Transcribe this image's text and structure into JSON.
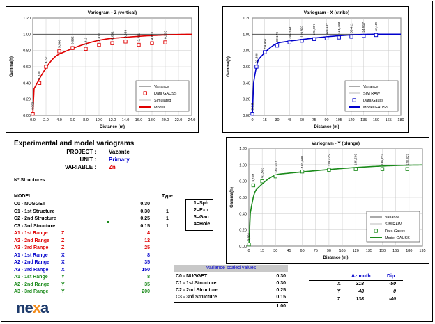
{
  "page": {
    "title": "Experimental and model variograms"
  },
  "project_info": {
    "project_label": "PROJECT :",
    "project_value": "Vazante",
    "unit_label": "UNIT :",
    "unit_value": "Primary",
    "variable_label": "VARIABLE :",
    "variable_value": "Zn"
  },
  "structures_label": "Nº Structures",
  "model": {
    "header": "MODEL",
    "type_header": "Type",
    "rows": [
      {
        "label": "C0 - NUGGET",
        "value": "0.30",
        "type": ""
      },
      {
        "label": "C1 - 1st Structure",
        "value": "0.30",
        "type": "1"
      },
      {
        "label": "C2 - 2nd Structure",
        "value": "0.25",
        "type": "1"
      },
      {
        "label": "C3 - 3rd Structure",
        "value": "0.15",
        "type": "1"
      }
    ],
    "ranges": [
      {
        "label": "A1 - 1st Range",
        "axis": "Z",
        "value": "4",
        "color": "red"
      },
      {
        "label": "A2 - 2nd Range",
        "axis": "Z",
        "value": "12",
        "color": "red"
      },
      {
        "label": "A3 - 3rd Range",
        "axis": "Z",
        "value": "25",
        "color": "red"
      },
      {
        "label": "A1 - 1st Range",
        "axis": "X",
        "value": "8",
        "color": "blue"
      },
      {
        "label": "A2 - 2nd Range",
        "axis": "X",
        "value": "35",
        "color": "blue"
      },
      {
        "label": "A3 - 3rd Range",
        "axis": "X",
        "value": "150",
        "color": "blue"
      },
      {
        "label": "A1 - 1st Range",
        "axis": "Y",
        "value": "8",
        "color": "green"
      },
      {
        "label": "A2 - 2nd Range",
        "axis": "Y",
        "value": "35",
        "color": "green"
      },
      {
        "label": "A3 - 3rd Range",
        "axis": "Y",
        "value": "200",
        "color": "green"
      }
    ]
  },
  "type_legend": [
    "1=Sph",
    "2=Exp",
    "3=Gau",
    "4=Hole"
  ],
  "variance_table": {
    "header": "Variance scaled values",
    "rows": [
      {
        "label": "C0 - NUGGET",
        "value": "0.30"
      },
      {
        "label": "C1 - 1st Structure",
        "value": "0.30"
      },
      {
        "label": "C2 - 2nd Structure",
        "value": "0.25"
      },
      {
        "label": "C3 - 3rd Structure",
        "value": "0.15"
      }
    ],
    "total": "1.00"
  },
  "orientation": {
    "azimuth_header": "Azimuth",
    "dip_header": "Dip",
    "rows": [
      {
        "axis": "X",
        "azimuth": "318",
        "dip": "-50"
      },
      {
        "axis": "Y",
        "azimuth": "48",
        "dip": "0"
      },
      {
        "axis": "Z",
        "azimuth": "138",
        "dip": "-40"
      }
    ]
  },
  "logo": {
    "pre": "ne",
    "x": "x",
    "post": "a"
  },
  "colors": {
    "red": "#e00000",
    "blue": "#0000cc",
    "green": "#1a8a1a"
  },
  "chart_data": [
    {
      "type": "scatter",
      "title": "Variogram - Z (vertical)",
      "xlabel": "Distance (m)",
      "ylabel": "Gamma(h)",
      "xlim": [
        0,
        24
      ],
      "ylim": [
        0,
        1.2
      ],
      "xticks": [
        "0.0",
        "2.0",
        "4.0",
        "6.0",
        "8.0",
        "10.0",
        "12.0",
        "14.0",
        "16.0",
        "18.0",
        "20.0",
        "22.0",
        "24.0"
      ],
      "yticks": [
        "0.00",
        "0.20",
        "0.40",
        "0.60",
        "0.80",
        "1.00",
        "1.20"
      ],
      "color": "#e00000",
      "legend": [
        "Variance",
        "Data GAUSS",
        "Simulated",
        "Model"
      ],
      "points": {
        "x": [
          0,
          1,
          2,
          4,
          6,
          8,
          10,
          12,
          14,
          16,
          18,
          20
        ],
        "y": [
          0.02,
          0.4,
          0.6,
          0.79,
          0.83,
          0.82,
          0.87,
          0.89,
          0.91,
          0.87,
          0.89,
          0.9
        ]
      },
      "pair_counts": [
        "4,002",
        "3,448",
        "4,511",
        "5,566",
        "6,992",
        "2,811",
        "4,312",
        "6,061",
        "6,999",
        "2,411",
        "4,611",
        "6,203"
      ],
      "model": {
        "nugget": 0.3,
        "structures": [
          {
            "c": 0.3,
            "a": 4
          },
          {
            "c": 0.25,
            "a": 12
          },
          {
            "c": 0.15,
            "a": 25
          }
        ]
      }
    },
    {
      "type": "scatter",
      "title": "Variogram - X (strike)",
      "xlabel": "Distance (m)",
      "ylabel": "Gamma(h)",
      "xlim": [
        0,
        180
      ],
      "ylim": [
        0,
        1.2
      ],
      "xticks": [
        "0",
        "15",
        "30",
        "45",
        "60",
        "75",
        "90",
        "105",
        "120",
        "135",
        "150",
        "165",
        "180"
      ],
      "yticks": [
        "0.00",
        "0.20",
        "0.40",
        "0.60",
        "0.80",
        "1.00",
        "1.20"
      ],
      "color": "#0000cc",
      "legend": [
        "Variance",
        "SIM RAW",
        "Data Gauss",
        "Model GAUSS"
      ],
      "points": {
        "x": [
          0,
          5,
          15,
          30,
          45,
          60,
          75,
          90,
          105,
          120,
          135,
          150
        ],
        "y": [
          0.02,
          0.6,
          0.78,
          0.86,
          0.9,
          0.92,
          0.94,
          0.95,
          0.96,
          0.97,
          0.98,
          0.99
        ]
      },
      "pair_counts": [
        "3,811",
        "22,388",
        "54,467",
        "90,179",
        "101,913",
        "119,897",
        "126,897",
        "124,197",
        "121,423",
        "33,411",
        "24,517",
        "12,115"
      ],
      "model": {
        "nugget": 0.3,
        "structures": [
          {
            "c": 0.3,
            "a": 8
          },
          {
            "c": 0.25,
            "a": 35
          },
          {
            "c": 0.15,
            "a": 150
          }
        ]
      }
    },
    {
      "type": "scatter",
      "title": "Variogram - Y (plunge)",
      "xlabel": "Distance (m)",
      "ylabel": "Gamma(h)",
      "xlim": [
        0,
        195
      ],
      "ylim": [
        0,
        1.2
      ],
      "xticks": [
        "0",
        "15",
        "30",
        "45",
        "60",
        "75",
        "90",
        "105",
        "120",
        "135",
        "150",
        "165",
        "180",
        "195"
      ],
      "yticks": [
        "0.00",
        "0.20",
        "0.40",
        "0.60",
        "0.80",
        "1.00",
        "1.20"
      ],
      "color": "#1a8a1a",
      "legend": [
        "Variance",
        "SIM RAW",
        "Data Gauss",
        "Model GAUSS"
      ],
      "points": {
        "x": [
          0,
          5,
          15,
          30,
          60,
          90,
          120,
          150,
          178
        ],
        "y": [
          0.02,
          0.75,
          0.8,
          0.86,
          0.92,
          0.94,
          0.95,
          0.95,
          0.95
        ]
      },
      "pair_counts": [
        "3,891",
        "9,184",
        "61,503",
        "161,147",
        "181,608",
        "119,225",
        "135,503",
        "139,724",
        "128,327"
      ],
      "model": {
        "nugget": 0.3,
        "structures": [
          {
            "c": 0.3,
            "a": 8
          },
          {
            "c": 0.25,
            "a": 35
          },
          {
            "c": 0.15,
            "a": 200
          }
        ]
      }
    }
  ]
}
